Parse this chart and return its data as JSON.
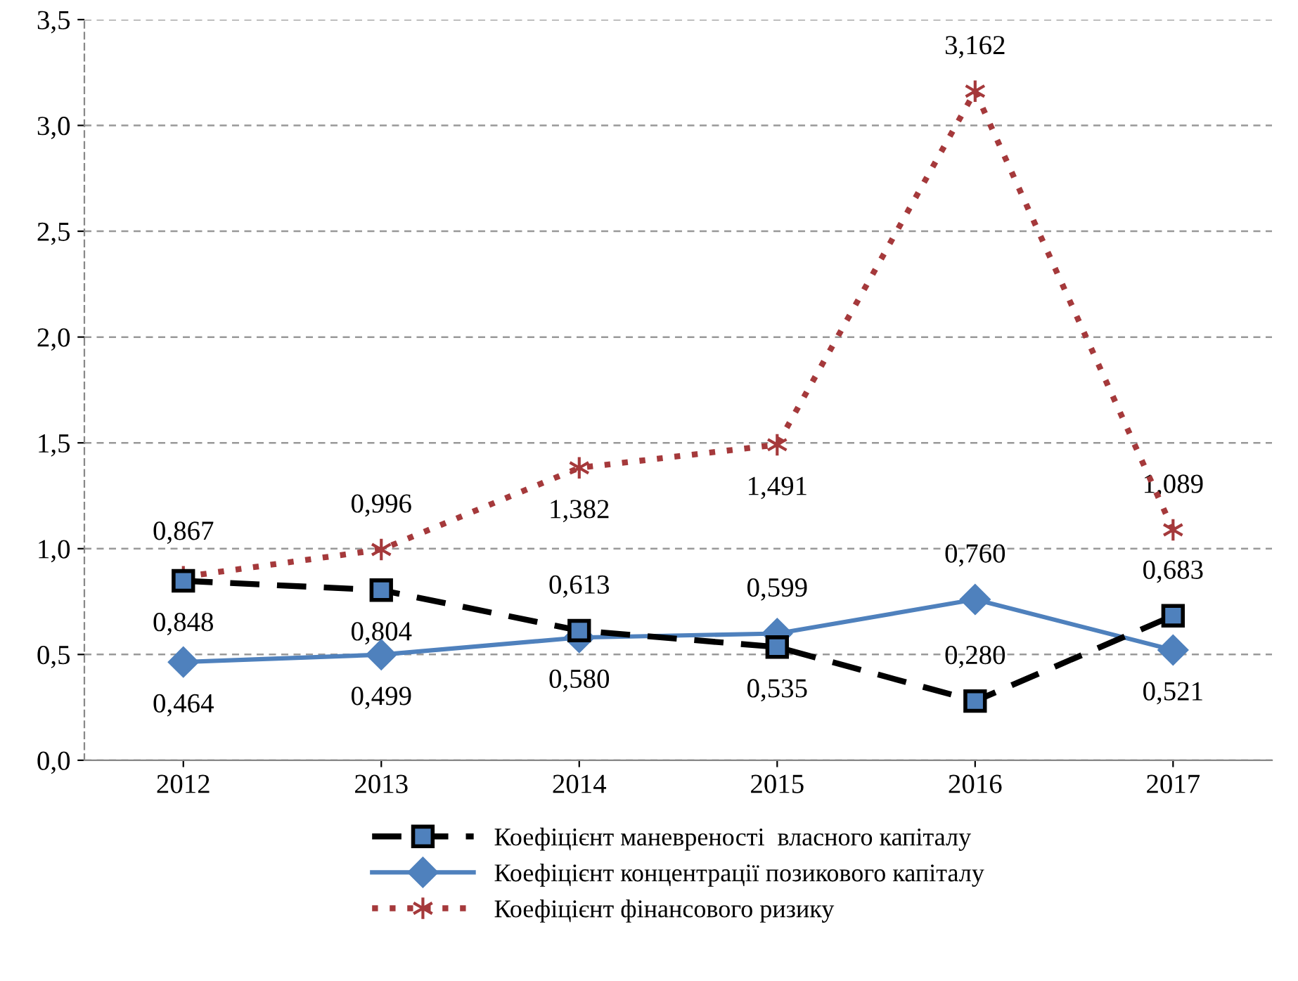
{
  "chart_data": {
    "type": "line",
    "categories": [
      "2012",
      "2013",
      "2014",
      "2015",
      "2016",
      "2017"
    ],
    "series": [
      {
        "name": "Коефіцієнт маневреності  власного капіталу",
        "color": "#000000",
        "marker": "square",
        "line_style": "dashed",
        "values": [
          0.848,
          0.804,
          0.613,
          0.535,
          0.28,
          0.683
        ],
        "value_labels": [
          "0,848",
          "0,804",
          "0,613",
          "0,535",
          "0,280",
          "0,683"
        ]
      },
      {
        "name": "Коефіцієнт концентрації позикового капіталу",
        "color": "#4f81bd",
        "marker": "diamond",
        "line_style": "solid",
        "values": [
          0.464,
          0.499,
          0.58,
          0.599,
          0.76,
          0.521
        ],
        "value_labels": [
          "0,464",
          "0,499",
          "0,580",
          "0,599",
          "0,760",
          "0,521"
        ]
      },
      {
        "name": "Коефіцієнт фінансового ризику",
        "color": "#a5393b",
        "marker": "cross",
        "line_style": "dotted",
        "values": [
          0.867,
          0.996,
          1.382,
          1.491,
          3.162,
          1.089
        ],
        "value_labels": [
          "0,867",
          "0,996",
          "1,382",
          "1,491",
          "3,162",
          "1,089"
        ]
      }
    ],
    "ylim": [
      0,
      3.5
    ],
    "yticks": [
      {
        "value": 0,
        "label": "0,0"
      },
      {
        "value": 0.5,
        "label": "0,5"
      },
      {
        "value": 1.0,
        "label": "1,0"
      },
      {
        "value": 1.5,
        "label": "1,5"
      },
      {
        "value": 2.0,
        "label": "2,0"
      },
      {
        "value": 2.5,
        "label": "2,5"
      },
      {
        "value": 3.0,
        "label": "3,0"
      },
      {
        "value": 3.5,
        "label": "3,5"
      }
    ],
    "grid": "y",
    "legend": "bottom"
  }
}
